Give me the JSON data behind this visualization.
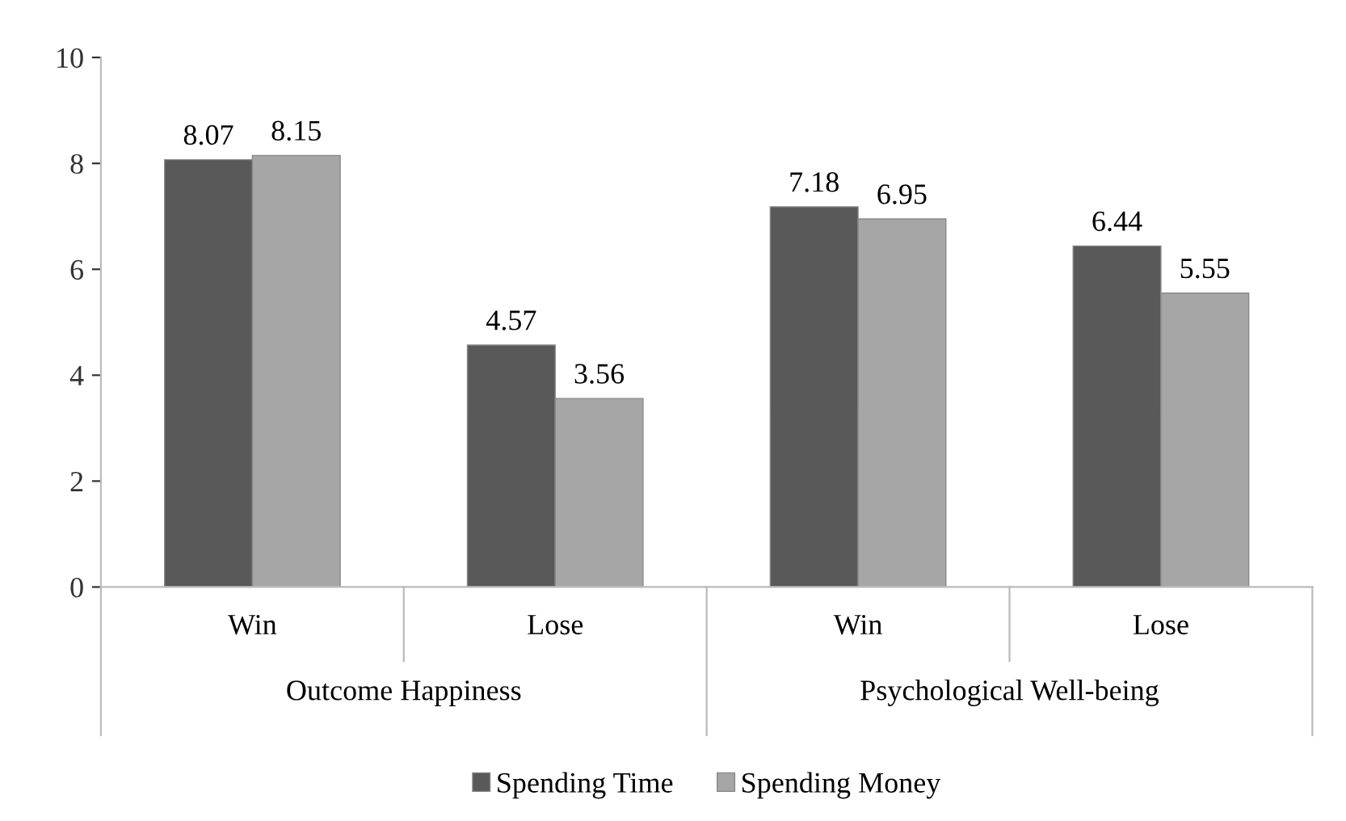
{
  "chart_data": {
    "type": "bar",
    "categories": [
      "Win",
      "Lose",
      "Win",
      "Lose"
    ],
    "series": [
      {
        "name": "Spending Time",
        "color": "#595959",
        "values": [
          8.07,
          4.57,
          7.18,
          6.44
        ]
      },
      {
        "name": "Spending Money",
        "color": "#a6a6a6",
        "values": [
          8.15,
          3.56,
          6.95,
          5.55
        ]
      }
    ],
    "annotations": [
      "Outcome Happiness",
      "Psychological Well-being"
    ],
    "ylim": [
      0,
      10
    ],
    "yticks": [
      0,
      2,
      4,
      6,
      8,
      10
    ],
    "grid": false,
    "legend": "bottom",
    "data_labels": true
  }
}
